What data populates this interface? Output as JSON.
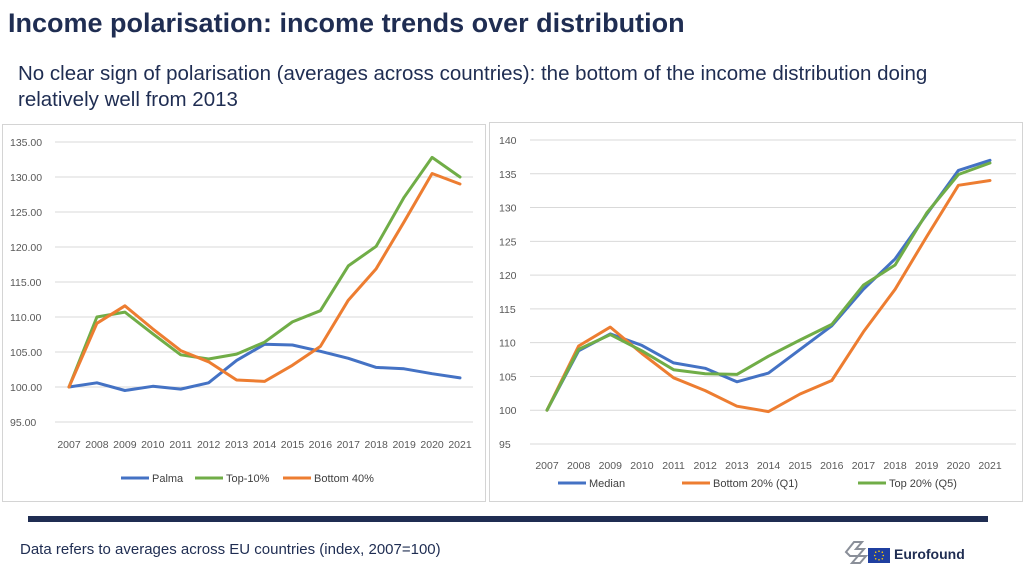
{
  "header": {
    "title": "Income polarisation: income trends over distribution",
    "subtitle": "No clear sign of polarisation (averages across countries): the bottom of the income distribution doing relatively well from 2013"
  },
  "footer": {
    "note": "Data refers to averages across EU countries (index, 2007=100)",
    "logo_text": "Eurofound"
  },
  "colors": {
    "blue": "#4472c4",
    "orange": "#ed7d31",
    "green": "#70ad47",
    "grid": "#d9d9d9",
    "navy": "#1f2d52"
  },
  "chart_data": [
    {
      "type": "line",
      "title": "",
      "xlabel": "",
      "ylabel": "",
      "categories": [
        "2007",
        "2008",
        "2009",
        "2010",
        "2011",
        "2012",
        "2013",
        "2014",
        "2015",
        "2016",
        "2017",
        "2018",
        "2019",
        "2020",
        "2021"
      ],
      "ylim": [
        95,
        135
      ],
      "yticks": [
        95,
        100,
        105,
        110,
        115,
        120,
        125,
        130,
        135
      ],
      "ytick_labels": [
        "95.00",
        "100.00",
        "105.00",
        "110.00",
        "115.00",
        "120.00",
        "125.00",
        "130.00",
        "135.00"
      ],
      "legend_position": "bottom",
      "series": [
        {
          "name": "Palma",
          "color": "#4472c4",
          "values": [
            100.0,
            100.6,
            99.5,
            100.1,
            99.7,
            100.6,
            103.8,
            106.1,
            106.0,
            105.1,
            104.1,
            102.8,
            102.6,
            101.9,
            101.3
          ]
        },
        {
          "name": "Top-10%",
          "color": "#70ad47",
          "values": [
            100.0,
            110.0,
            110.7,
            107.6,
            104.6,
            104.0,
            104.7,
            106.4,
            109.3,
            110.9,
            117.3,
            120.1,
            127.1,
            132.8,
            130.0
          ]
        },
        {
          "name": "Bottom 40%",
          "color": "#ed7d31",
          "values": [
            100.0,
            109.1,
            111.6,
            108.3,
            105.2,
            103.6,
            101.0,
            100.8,
            103.1,
            105.8,
            112.4,
            116.9,
            123.6,
            130.5,
            129.0
          ]
        }
      ]
    },
    {
      "type": "line",
      "title": "",
      "xlabel": "",
      "ylabel": "",
      "categories": [
        "2007",
        "2008",
        "2009",
        "2010",
        "2011",
        "2012",
        "2013",
        "2014",
        "2015",
        "2016",
        "2017",
        "2018",
        "2019",
        "2020",
        "2021"
      ],
      "ylim": [
        95,
        140
      ],
      "yticks": [
        95,
        100,
        105,
        110,
        115,
        120,
        125,
        130,
        135,
        140
      ],
      "ytick_labels": [
        "95",
        "100",
        "105",
        "110",
        "115",
        "120",
        "125",
        "130",
        "135",
        "140"
      ],
      "legend_position": "bottom",
      "series": [
        {
          "name": "Median",
          "color": "#4472c4",
          "values": [
            100.0,
            108.8,
            111.3,
            109.6,
            107.0,
            106.2,
            104.2,
            105.5,
            109.0,
            112.5,
            117.9,
            122.4,
            129.0,
            135.5,
            137.0
          ]
        },
        {
          "name": "Bottom 20% (Q1)",
          "color": "#ed7d31",
          "values": [
            100.0,
            109.5,
            112.3,
            108.4,
            104.8,
            102.9,
            100.6,
            99.8,
            102.4,
            104.4,
            111.6,
            117.9,
            125.7,
            133.3,
            134.0
          ]
        },
        {
          "name": "Top 20% (Q5)",
          "color": "#70ad47",
          "values": [
            100.0,
            109.0,
            111.2,
            108.8,
            106.0,
            105.4,
            105.3,
            108.0,
            110.4,
            112.7,
            118.5,
            121.5,
            129.2,
            134.9,
            136.6
          ]
        }
      ]
    }
  ]
}
